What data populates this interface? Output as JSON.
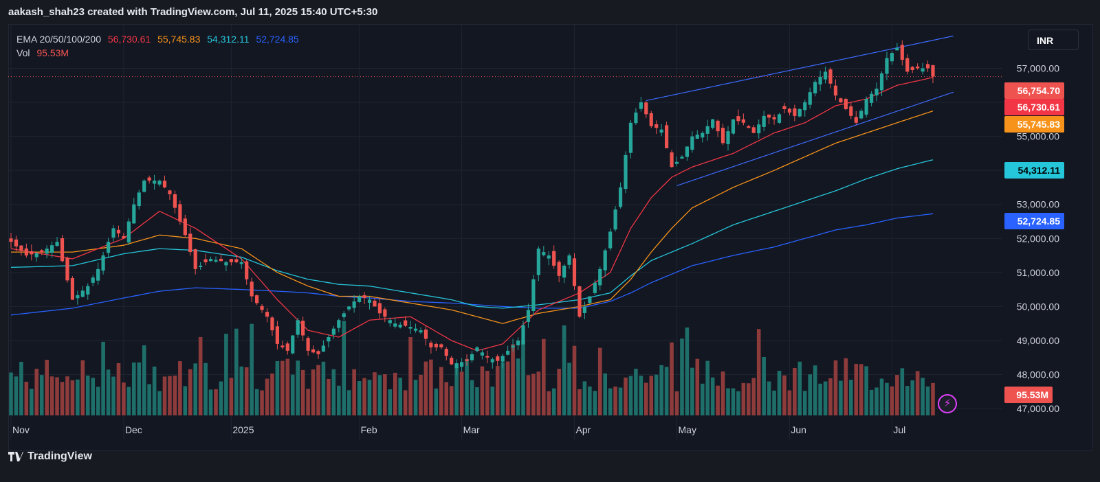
{
  "header": {
    "author_line": "aakash_shah23 created with TradingView.com, Jul 11, 2025 15:40 UTC+5:30"
  },
  "currency_button": "INR",
  "footer": {
    "brand": "TradingView"
  },
  "legend": {
    "ema_label": "EMA 20/50/100/200",
    "ema20": "56,730.61",
    "ema50": "55,745.83",
    "ema100": "54,312.11",
    "ema200": "52,724.85",
    "vol_label": "Vol",
    "vol_value": "95.53M"
  },
  "colors": {
    "up": "#26a69a",
    "down": "#ef5350",
    "vol_up": "#1e6e69",
    "vol_down": "#8e3b3b",
    "ema20": "#f23645",
    "ema50": "#f7931a",
    "ema100": "#26c6da",
    "ema200": "#2962ff",
    "channel": "#3d6bff",
    "grid": "#1f2431",
    "axis_text": "#d1d4dc"
  },
  "chart_data": {
    "type": "candlestick",
    "title": "EMA 20/50/100/200",
    "ylim": [
      46800,
      58200
    ],
    "y_ticks": [
      "47,000.00",
      "48,000.00",
      "49,000.00",
      "50,000.00",
      "51,000.00",
      "52,000.00",
      "53,000.00",
      "54,000.00",
      "55,000.00",
      "56,000.00",
      "57,000.00"
    ],
    "y_tick_values": [
      47000,
      48000,
      49000,
      50000,
      51000,
      52000,
      53000,
      54000,
      55000,
      56000,
      57000
    ],
    "x_labels": [
      "Nov",
      "Dec",
      "2025",
      "Feb",
      "Mar",
      "Apr",
      "May",
      "Jun",
      "Jul"
    ],
    "x_label_index": [
      0,
      22,
      43,
      68,
      88,
      110,
      130,
      152,
      172
    ],
    "price_labels": [
      {
        "value": 56754.7,
        "text": "56,754.70",
        "kind": "last"
      },
      {
        "value": 56730.61,
        "text": "56,730.61",
        "kind": "ema20"
      },
      {
        "value": 55745.83,
        "text": "55,745.83",
        "kind": "ema50"
      },
      {
        "value": 54312.11,
        "text": "54,312.11",
        "kind": "ema100"
      },
      {
        "value": 52724.85,
        "text": "52,724.85",
        "kind": "ema200"
      }
    ],
    "volume_label": "95.53M",
    "volume_scale_max": 100,
    "close_anchors": [
      [
        0,
        51900
      ],
      [
        3,
        51500
      ],
      [
        6,
        51600
      ],
      [
        9,
        51900
      ],
      [
        12,
        50200
      ],
      [
        15,
        50600
      ],
      [
        17,
        51100
      ],
      [
        20,
        52300
      ],
      [
        22,
        52000
      ],
      [
        24,
        53000
      ],
      [
        26,
        53700
      ],
      [
        29,
        53700
      ],
      [
        31,
        53300
      ],
      [
        34,
        52100
      ],
      [
        36,
        51100
      ],
      [
        39,
        51400
      ],
      [
        42,
        51300
      ],
      [
        45,
        51300
      ],
      [
        47,
        50300
      ],
      [
        50,
        49700
      ],
      [
        52,
        48900
      ],
      [
        54,
        48700
      ],
      [
        56,
        49600
      ],
      [
        58,
        48700
      ],
      [
        60,
        48600
      ],
      [
        62,
        49100
      ],
      [
        64,
        49600
      ],
      [
        66,
        50000
      ],
      [
        68,
        50300
      ],
      [
        70,
        50200
      ],
      [
        72,
        49800
      ],
      [
        75,
        49500
      ],
      [
        78,
        49400
      ],
      [
        80,
        49300
      ],
      [
        82,
        48800
      ],
      [
        84,
        48800
      ],
      [
        86,
        48300
      ],
      [
        89,
        48400
      ],
      [
        91,
        48800
      ],
      [
        93,
        48500
      ],
      [
        95,
        48400
      ],
      [
        97,
        48700
      ],
      [
        99,
        49000
      ],
      [
        101,
        49900
      ],
      [
        103,
        51700
      ],
      [
        105,
        51500
      ],
      [
        107,
        50900
      ],
      [
        109,
        51500
      ],
      [
        111,
        49700
      ],
      [
        113,
        50300
      ],
      [
        115,
        51100
      ],
      [
        117,
        52200
      ],
      [
        119,
        53500
      ],
      [
        121,
        55400
      ],
      [
        123,
        56000
      ],
      [
        125,
        55300
      ],
      [
        127,
        55200
      ],
      [
        129,
        54100
      ],
      [
        131,
        54400
      ],
      [
        133,
        55000
      ],
      [
        135,
        55100
      ],
      [
        137,
        55500
      ],
      [
        139,
        54800
      ],
      [
        141,
        55500
      ],
      [
        143,
        55400
      ],
      [
        145,
        55100
      ],
      [
        147,
        55600
      ],
      [
        149,
        55500
      ],
      [
        151,
        55800
      ],
      [
        153,
        55600
      ],
      [
        155,
        56000
      ],
      [
        157,
        56600
      ],
      [
        159,
        56900
      ],
      [
        161,
        56200
      ],
      [
        163,
        55800
      ],
      [
        165,
        55400
      ],
      [
        167,
        56100
      ],
      [
        169,
        56400
      ],
      [
        171,
        57300
      ],
      [
        173,
        57600
      ],
      [
        175,
        56900
      ],
      [
        177,
        57000
      ],
      [
        179,
        57000
      ],
      [
        180,
        56755
      ]
    ],
    "ema20_anchors": [
      [
        0,
        51700
      ],
      [
        12,
        51400
      ],
      [
        22,
        52000
      ],
      [
        29,
        52800
      ],
      [
        36,
        52300
      ],
      [
        45,
        51400
      ],
      [
        52,
        50200
      ],
      [
        58,
        49300
      ],
      [
        64,
        49100
      ],
      [
        70,
        49600
      ],
      [
        78,
        49700
      ],
      [
        86,
        49000
      ],
      [
        91,
        48700
      ],
      [
        96,
        48900
      ],
      [
        103,
        49900
      ],
      [
        111,
        50400
      ],
      [
        117,
        51000
      ],
      [
        121,
        52300
      ],
      [
        125,
        53200
      ],
      [
        129,
        53800
      ],
      [
        133,
        54100
      ],
      [
        141,
        54500
      ],
      [
        149,
        55100
      ],
      [
        155,
        55400
      ],
      [
        161,
        55900
      ],
      [
        167,
        56100
      ],
      [
        173,
        56500
      ],
      [
        180,
        56731
      ]
    ],
    "ema50_anchors": [
      [
        0,
        51600
      ],
      [
        12,
        51600
      ],
      [
        22,
        51800
      ],
      [
        29,
        52100
      ],
      [
        36,
        52000
      ],
      [
        45,
        51700
      ],
      [
        52,
        51000
      ],
      [
        58,
        50600
      ],
      [
        64,
        50300
      ],
      [
        70,
        50300
      ],
      [
        78,
        50100
      ],
      [
        86,
        49900
      ],
      [
        91,
        49700
      ],
      [
        96,
        49500
      ],
      [
        103,
        49800
      ],
      [
        111,
        50000
      ],
      [
        117,
        50200
      ],
      [
        121,
        50800
      ],
      [
        125,
        51600
      ],
      [
        129,
        52300
      ],
      [
        133,
        52900
      ],
      [
        141,
        53500
      ],
      [
        149,
        54000
      ],
      [
        155,
        54400
      ],
      [
        161,
        54800
      ],
      [
        167,
        55100
      ],
      [
        173,
        55400
      ],
      [
        180,
        55746
      ]
    ],
    "ema100_anchors": [
      [
        0,
        51150
      ],
      [
        12,
        51200
      ],
      [
        22,
        51550
      ],
      [
        29,
        51700
      ],
      [
        36,
        51650
      ],
      [
        45,
        51450
      ],
      [
        52,
        51050
      ],
      [
        58,
        50800
      ],
      [
        64,
        50650
      ],
      [
        70,
        50600
      ],
      [
        78,
        50400
      ],
      [
        86,
        50200
      ],
      [
        91,
        50000
      ],
      [
        96,
        49950
      ],
      [
        103,
        50050
      ],
      [
        111,
        50200
      ],
      [
        117,
        50400
      ],
      [
        121,
        50900
      ],
      [
        125,
        51350
      ],
      [
        129,
        51600
      ],
      [
        133,
        51850
      ],
      [
        141,
        52400
      ],
      [
        149,
        52800
      ],
      [
        155,
        53100
      ],
      [
        161,
        53400
      ],
      [
        167,
        53750
      ],
      [
        173,
        54050
      ],
      [
        180,
        54312
      ]
    ],
    "ema200_anchors": [
      [
        0,
        49750
      ],
      [
        12,
        49950
      ],
      [
        22,
        50250
      ],
      [
        29,
        50450
      ],
      [
        36,
        50550
      ],
      [
        45,
        50500
      ],
      [
        52,
        50450
      ],
      [
        58,
        50400
      ],
      [
        64,
        50300
      ],
      [
        70,
        50250
      ],
      [
        78,
        50150
      ],
      [
        86,
        50100
      ],
      [
        91,
        50050
      ],
      [
        96,
        50000
      ],
      [
        103,
        49950
      ],
      [
        111,
        49950
      ],
      [
        117,
        50150
      ],
      [
        121,
        50400
      ],
      [
        125,
        50700
      ],
      [
        129,
        50950
      ],
      [
        133,
        51200
      ],
      [
        141,
        51500
      ],
      [
        149,
        51750
      ],
      [
        155,
        52000
      ],
      [
        161,
        52250
      ],
      [
        167,
        52400
      ],
      [
        173,
        52600
      ],
      [
        180,
        52725
      ]
    ],
    "channel_upper": [
      [
        124,
        56050
      ],
      [
        184,
        57950
      ]
    ],
    "channel_lower": [
      [
        130,
        53550
      ],
      [
        184,
        56300
      ]
    ],
    "last_price_line": 56754.7
  }
}
